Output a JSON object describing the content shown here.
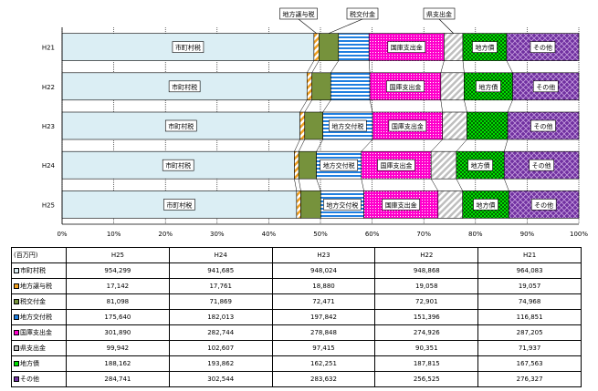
{
  "chart_data": {
    "type": "bar",
    "stacking": "percent",
    "orientation": "horizontal",
    "unit": "(百万円)",
    "categories": [
      "H21",
      "H22",
      "H23",
      "H24",
      "H25"
    ],
    "table_years": [
      "H25",
      "H24",
      "H23",
      "H22",
      "H21"
    ],
    "xticks": [
      "0%",
      "10%",
      "20%",
      "30%",
      "40%",
      "50%",
      "60%",
      "70%",
      "80%",
      "90%",
      "100%"
    ],
    "xlim": [
      0,
      100
    ],
    "series": [
      {
        "name": "市町村税",
        "values": [
          964083,
          948868,
          948024,
          941685,
          954299
        ],
        "display": [
          "964,083",
          "948,868",
          "948,024",
          "941,685",
          "954,299"
        ],
        "color": "#dbeef4",
        "pattern": "solid"
      },
      {
        "name": "地方譲与税",
        "values": [
          19057,
          19058,
          18880,
          17761,
          17142
        ],
        "display": [
          "19,057",
          "19,058",
          "18,880",
          "17,761",
          "17,142"
        ],
        "color": "#f0a020",
        "pattern": "stripes-diag"
      },
      {
        "name": "税交付金",
        "values": [
          74968,
          72901,
          72471,
          71869,
          81098
        ],
        "display": [
          "74,968",
          "72,901",
          "72,471",
          "71,869",
          "81,098"
        ],
        "color": "#76923c",
        "pattern": "solid"
      },
      {
        "name": "地方交付税",
        "values": [
          116851,
          151396,
          197842,
          182013,
          175640
        ],
        "display": [
          "116,851",
          "151,396",
          "197,842",
          "182,013",
          "175,640"
        ],
        "color": "#1f7fe0",
        "pattern": "stripes-horiz"
      },
      {
        "name": "国庫支出金",
        "values": [
          287205,
          274926,
          278848,
          282744,
          301890
        ],
        "display": [
          "287,205",
          "274,926",
          "278,848",
          "282,744",
          "301,890"
        ],
        "color": "#ff00cc",
        "pattern": "dots"
      },
      {
        "name": "県支出金",
        "values": [
          71937,
          90351,
          97415,
          102607,
          99942
        ],
        "display": [
          "71,937",
          "90,351",
          "97,415",
          "102,607",
          "99,942"
        ],
        "color": "#bfbfbf",
        "pattern": "stripes-diag"
      },
      {
        "name": "地方債",
        "values": [
          167563,
          187815,
          162251,
          193862,
          188162
        ],
        "display": [
          "167,563",
          "187,815",
          "162,251",
          "193,862",
          "188,162"
        ],
        "color": "#00dd00",
        "pattern": "checker"
      },
      {
        "name": "その他",
        "values": [
          276327,
          256525,
          283632,
          302544,
          284741
        ],
        "display": [
          "276,327",
          "256,525",
          "283,632",
          "302,544",
          "284,741"
        ],
        "color": "#7030a0",
        "pattern": "diamond"
      }
    ],
    "callouts": [
      "地方譲与税",
      "税交付金",
      "県支出金"
    ]
  }
}
